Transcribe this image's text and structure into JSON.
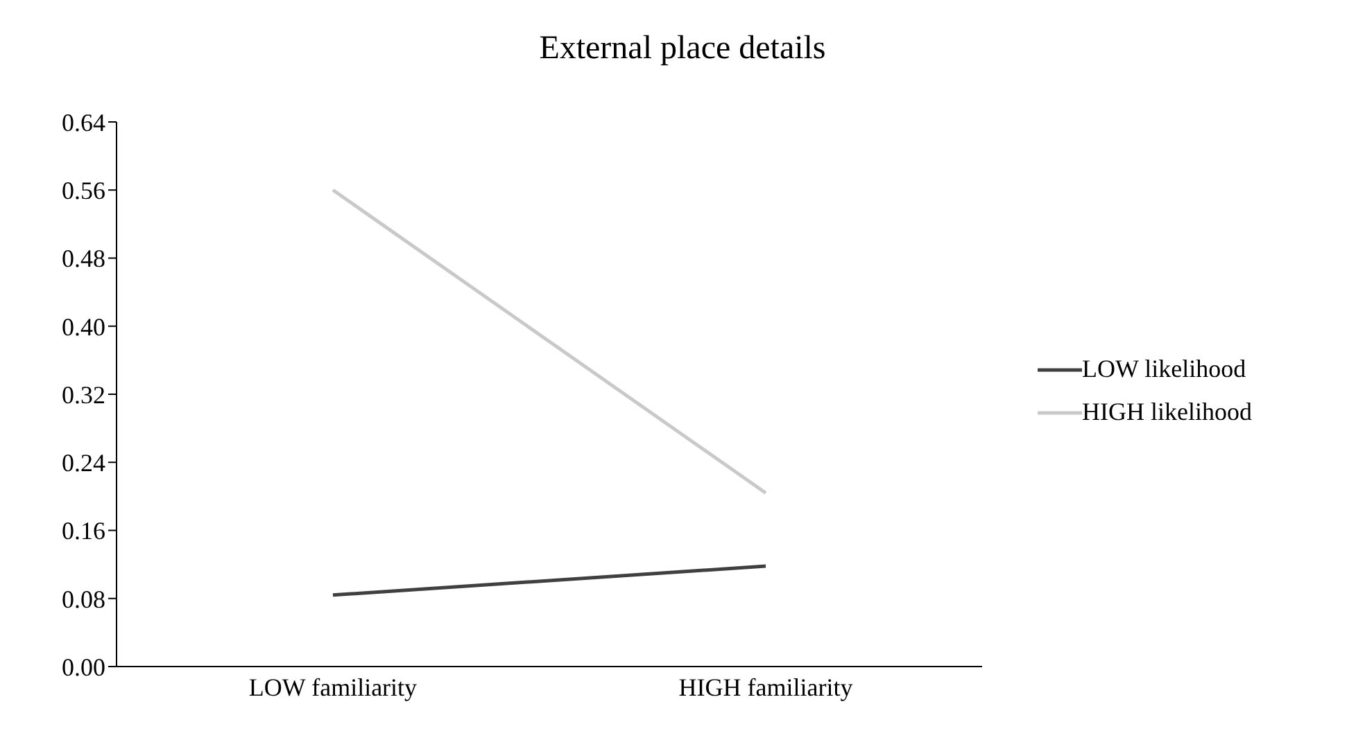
{
  "chart_data": {
    "type": "line",
    "title": "External place details",
    "categories": [
      "LOW familiarity",
      "HIGH familiarity"
    ],
    "series": [
      {
        "name": "LOW likelihood",
        "color": "#404040",
        "values": [
          0.084,
          0.118
        ]
      },
      {
        "name": "HIGH likelihood",
        "color": "#c9c9c9",
        "values": [
          0.56,
          0.204
        ]
      }
    ],
    "ylim": [
      0,
      0.64
    ],
    "yticks": [
      {
        "value": 0,
        "label": "0.00"
      },
      0.08,
      0.16,
      0.24,
      0.32,
      {
        "value": 0.4,
        "label": "0.40"
      },
      0.48,
      0.56,
      0.64
    ],
    "grid": false,
    "legend": "right",
    "marker": "none"
  }
}
